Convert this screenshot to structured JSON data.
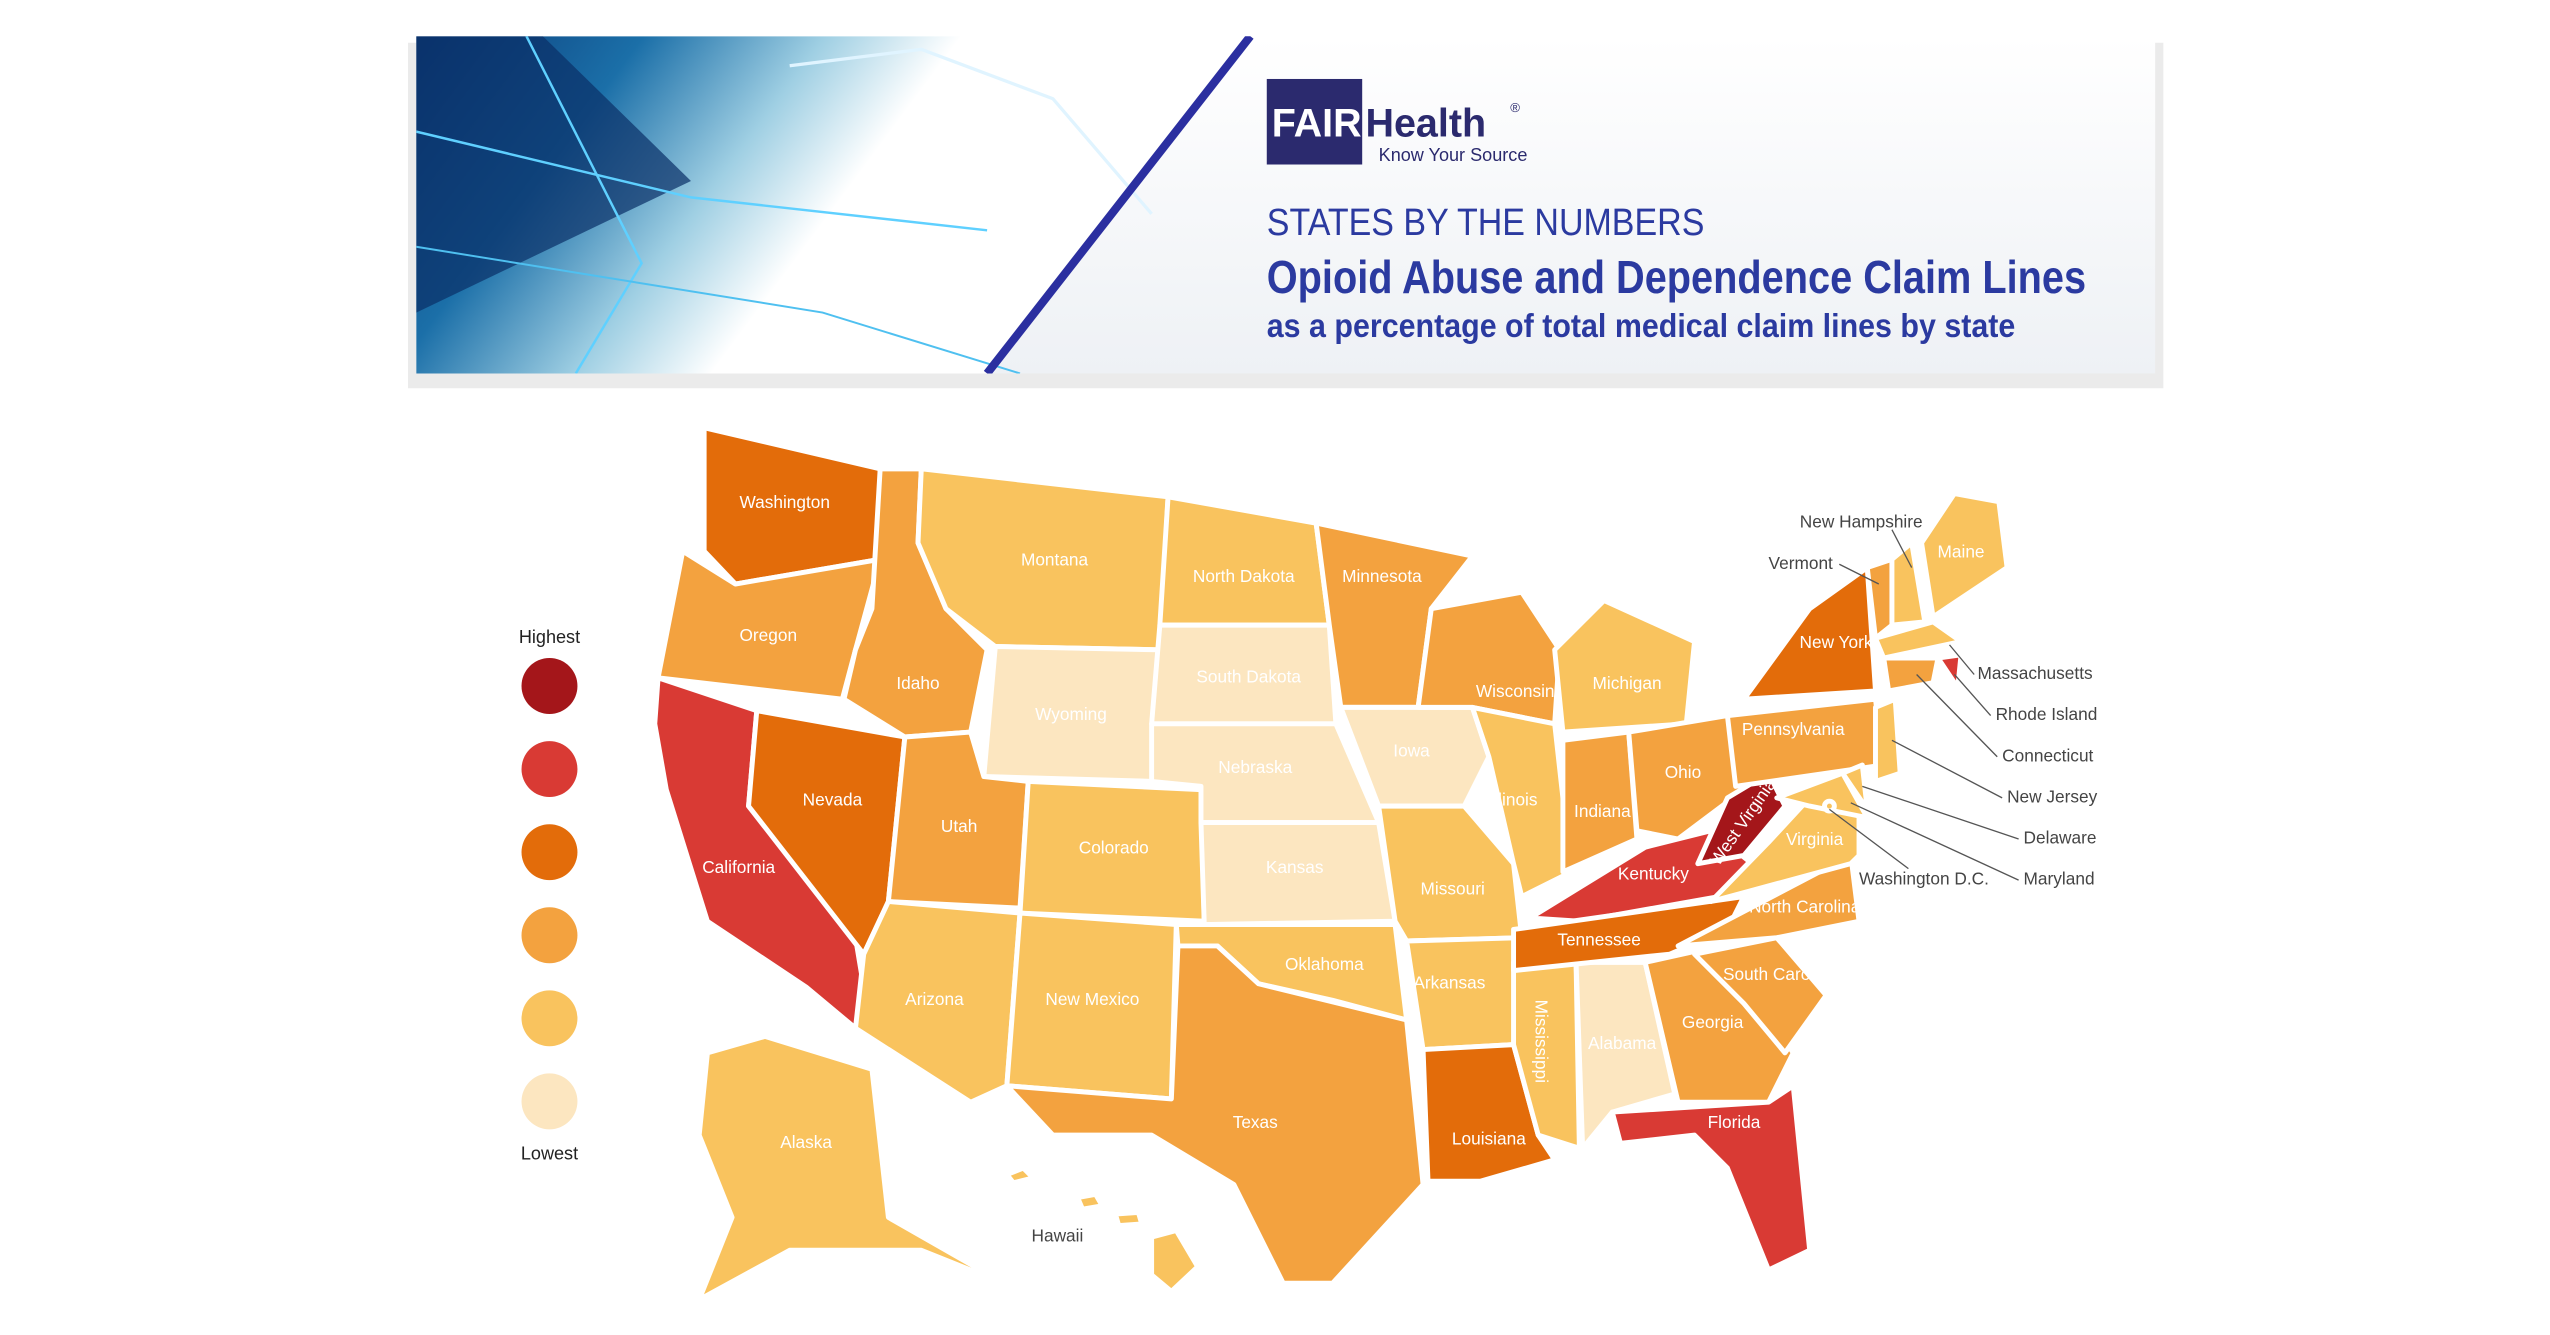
{
  "header": {
    "logo": {
      "primary": "FAIR",
      "secondary": "Health",
      "trademark": "®",
      "tagline": "Know Your Source"
    },
    "kicker": "STATES BY THE NUMBERS",
    "title": "Opioid Abuse and Dependence Claim Lines",
    "subtitle": "as a percentage of total medical claim lines by state"
  },
  "legend": {
    "high_label": "Highest",
    "low_label": "Lowest",
    "levels": [
      {
        "color": "#a4161a"
      },
      {
        "color": "#d93a34"
      },
      {
        "color": "#e36c0a"
      },
      {
        "color": "#f3a23f"
      },
      {
        "color": "#f9c35e"
      },
      {
        "color": "#fce6c0"
      }
    ]
  },
  "states": [
    {
      "name": "Washington",
      "color": "#e36c0a"
    },
    {
      "name": "Oregon",
      "color": "#f3a23f"
    },
    {
      "name": "California",
      "color": "#d93a34"
    },
    {
      "name": "Nevada",
      "color": "#e36c0a"
    },
    {
      "name": "Idaho",
      "color": "#f3a23f"
    },
    {
      "name": "Montana",
      "color": "#f9c35e"
    },
    {
      "name": "Wyoming",
      "color": "#fce6c0"
    },
    {
      "name": "Utah",
      "color": "#f3a23f"
    },
    {
      "name": "Arizona",
      "color": "#f9c35e"
    },
    {
      "name": "Colorado",
      "color": "#f9c35e"
    },
    {
      "name": "New Mexico",
      "color": "#f9c35e"
    },
    {
      "name": "North Dakota",
      "color": "#f9c35e"
    },
    {
      "name": "South Dakota",
      "color": "#fce6c0"
    },
    {
      "name": "Nebraska",
      "color": "#fce6c0"
    },
    {
      "name": "Kansas",
      "color": "#fce6c0"
    },
    {
      "name": "Oklahoma",
      "color": "#f9c35e"
    },
    {
      "name": "Texas",
      "color": "#f3a23f"
    },
    {
      "name": "Minnesota",
      "color": "#f3a23f"
    },
    {
      "name": "Iowa",
      "color": "#fce6c0"
    },
    {
      "name": "Missouri",
      "color": "#f9c35e"
    },
    {
      "name": "Arkansas",
      "color": "#f9c35e"
    },
    {
      "name": "Louisiana",
      "color": "#e36c0a"
    },
    {
      "name": "Wisconsin",
      "color": "#f3a23f"
    },
    {
      "name": "Illinois",
      "color": "#f9c35e"
    },
    {
      "name": "Mississippi",
      "color": "#f9c35e"
    },
    {
      "name": "Alabama",
      "color": "#fce6c0"
    },
    {
      "name": "Michigan",
      "color": "#f9c35e"
    },
    {
      "name": "Indiana",
      "color": "#f3a23f"
    },
    {
      "name": "Ohio",
      "color": "#f3a23f"
    },
    {
      "name": "Kentucky",
      "color": "#d93a34"
    },
    {
      "name": "Tennessee",
      "color": "#e36c0a"
    },
    {
      "name": "Georgia",
      "color": "#f3a23f"
    },
    {
      "name": "Florida",
      "color": "#d93a34"
    },
    {
      "name": "South Carolina",
      "color": "#f3a23f"
    },
    {
      "name": "North Carolina",
      "color": "#f3a23f"
    },
    {
      "name": "Virginia",
      "color": "#f9c35e"
    },
    {
      "name": "West Virginia",
      "color": "#a4161a"
    },
    {
      "name": "Pennsylvania",
      "color": "#f3a23f"
    },
    {
      "name": "New York",
      "color": "#e36c0a"
    },
    {
      "name": "Vermont",
      "color": "#f3a23f"
    },
    {
      "name": "New Hampshire",
      "color": "#f9c35e"
    },
    {
      "name": "Maine",
      "color": "#f9c35e"
    },
    {
      "name": "Massachusetts",
      "color": "#f9c35e"
    },
    {
      "name": "Rhode Island",
      "color": "#d93a34"
    },
    {
      "name": "Connecticut",
      "color": "#f3a23f"
    },
    {
      "name": "New Jersey",
      "color": "#f9c35e"
    },
    {
      "name": "Delaware",
      "color": "#f9c35e"
    },
    {
      "name": "Maryland",
      "color": "#f9c35e"
    },
    {
      "name": "Washington D.C.",
      "color": "#f9c35e"
    },
    {
      "name": "Alaska",
      "color": "#f9c35e"
    },
    {
      "name": "Hawaii",
      "color": "#f9c35e"
    }
  ]
}
